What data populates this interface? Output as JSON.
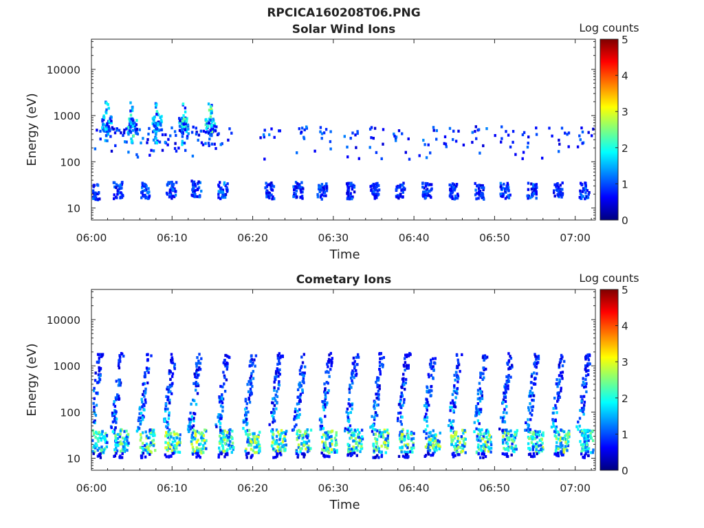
{
  "figure": {
    "title": "RPCICA160208T06.PNG"
  },
  "colormap": {
    "name": "jet",
    "stops": [
      "#00007f",
      "#0000ff",
      "#007fff",
      "#00ffff",
      "#7fff7f",
      "#ffff00",
      "#ff7f00",
      "#ff0000",
      "#7f0000"
    ]
  },
  "chart_data": [
    {
      "type": "heatmap",
      "title": "Solar Wind Ions",
      "xlabel": "Time",
      "ylabel": "Energy (eV)",
      "x_ticks": [
        "06:00",
        "06:10",
        "06:20",
        "06:30",
        "06:40",
        "06:50",
        "07:00"
      ],
      "x_tick_minutes": [
        0,
        10,
        20,
        30,
        40,
        50,
        60
      ],
      "xlim_minutes": [
        0,
        62.5
      ],
      "y_scale": "log",
      "y_ticks": [
        "10",
        "100",
        "1000",
        "10000"
      ],
      "y_tick_values": [
        10,
        100,
        1000,
        10000
      ],
      "ylim": [
        5.5,
        45000
      ],
      "colorbar": {
        "label": "Log counts",
        "ticks": [
          "0",
          "1",
          "2",
          "3",
          "4",
          "5"
        ],
        "range": [
          0,
          5
        ]
      },
      "grid": false,
      "bursts": [
        {
          "t": 0.3,
          "e": 25,
          "c": 0.9
        },
        {
          "t": 1.8,
          "e": 800,
          "c": 1.6
        },
        {
          "t": 3.2,
          "e": 28,
          "c": 0.9
        },
        {
          "t": 4.9,
          "e": 750,
          "c": 1.8
        },
        {
          "t": 6.5,
          "e": 27,
          "c": 0.9
        },
        {
          "t": 8.0,
          "e": 750,
          "c": 1.6
        },
        {
          "t": 9.8,
          "e": 28,
          "c": 0.9
        },
        {
          "t": 11.3,
          "e": 700,
          "c": 2.0
        },
        {
          "t": 12.9,
          "e": 30,
          "c": 0.9
        },
        {
          "t": 14.6,
          "e": 700,
          "c": 2.2
        },
        {
          "t": 16.2,
          "e": 28,
          "c": 1.1
        },
        {
          "t": 22.0,
          "e": 27,
          "c": 0.8
        },
        {
          "t": 25.5,
          "e": 28,
          "c": 0.8
        },
        {
          "t": 28.5,
          "e": 27,
          "c": 0.8
        },
        {
          "t": 32.0,
          "e": 27,
          "c": 0.8
        },
        {
          "t": 35.0,
          "e": 28,
          "c": 0.8
        },
        {
          "t": 38.2,
          "e": 27,
          "c": 0.8
        },
        {
          "t": 41.5,
          "e": 27,
          "c": 0.8
        },
        {
          "t": 44.8,
          "e": 27,
          "c": 0.8
        },
        {
          "t": 48.0,
          "e": 27,
          "c": 0.8
        },
        {
          "t": 51.2,
          "e": 28,
          "c": 1.0
        },
        {
          "t": 54.5,
          "e": 28,
          "c": 1.0
        },
        {
          "t": 57.8,
          "e": 27,
          "c": 0.8
        },
        {
          "t": 61.0,
          "e": 27,
          "c": 1.0
        }
      ]
    },
    {
      "type": "heatmap",
      "title": "Cometary Ions",
      "xlabel": "Time",
      "ylabel": "Energy (eV)",
      "x_ticks": [
        "06:00",
        "06:10",
        "06:20",
        "06:30",
        "06:40",
        "06:50",
        "07:00"
      ],
      "x_tick_minutes": [
        0,
        10,
        20,
        30,
        40,
        50,
        60
      ],
      "xlim_minutes": [
        0,
        62.5
      ],
      "y_scale": "log",
      "y_ticks": [
        "10",
        "100",
        "1000",
        "10000"
      ],
      "y_tick_values": [
        10,
        100,
        1000,
        10000
      ],
      "ylim": [
        5.5,
        45000
      ],
      "colorbar": {
        "label": "Log counts",
        "ticks": [
          "0",
          "1",
          "2",
          "3",
          "4",
          "5"
        ],
        "range": [
          0,
          5
        ]
      },
      "grid": false,
      "bursts": [
        {
          "t": 0.5,
          "e": 25,
          "c": 1.8
        },
        {
          "t": 3.2,
          "e": 25,
          "c": 2.0
        },
        {
          "t": 6.5,
          "e": 25,
          "c": 2.2
        },
        {
          "t": 9.6,
          "e": 25,
          "c": 2.3
        },
        {
          "t": 12.8,
          "e": 25,
          "c": 2.4
        },
        {
          "t": 16.2,
          "e": 25,
          "c": 2.2
        },
        {
          "t": 19.5,
          "e": 25,
          "c": 2.3
        },
        {
          "t": 22.8,
          "e": 25,
          "c": 2.3
        },
        {
          "t": 25.8,
          "e": 25,
          "c": 2.2
        },
        {
          "t": 29.0,
          "e": 25,
          "c": 2.3
        },
        {
          "t": 32.2,
          "e": 25,
          "c": 2.2
        },
        {
          "t": 35.4,
          "e": 25,
          "c": 2.4
        },
        {
          "t": 38.6,
          "e": 25,
          "c": 2.3
        },
        {
          "t": 41.8,
          "e": 25,
          "c": 2.3
        },
        {
          "t": 45.0,
          "e": 25,
          "c": 2.3
        },
        {
          "t": 48.2,
          "e": 25,
          "c": 2.3
        },
        {
          "t": 51.4,
          "e": 25,
          "c": 2.3
        },
        {
          "t": 54.6,
          "e": 25,
          "c": 2.4
        },
        {
          "t": 57.8,
          "e": 25,
          "c": 2.2
        },
        {
          "t": 61.0,
          "e": 25,
          "c": 2.0
        }
      ]
    }
  ]
}
